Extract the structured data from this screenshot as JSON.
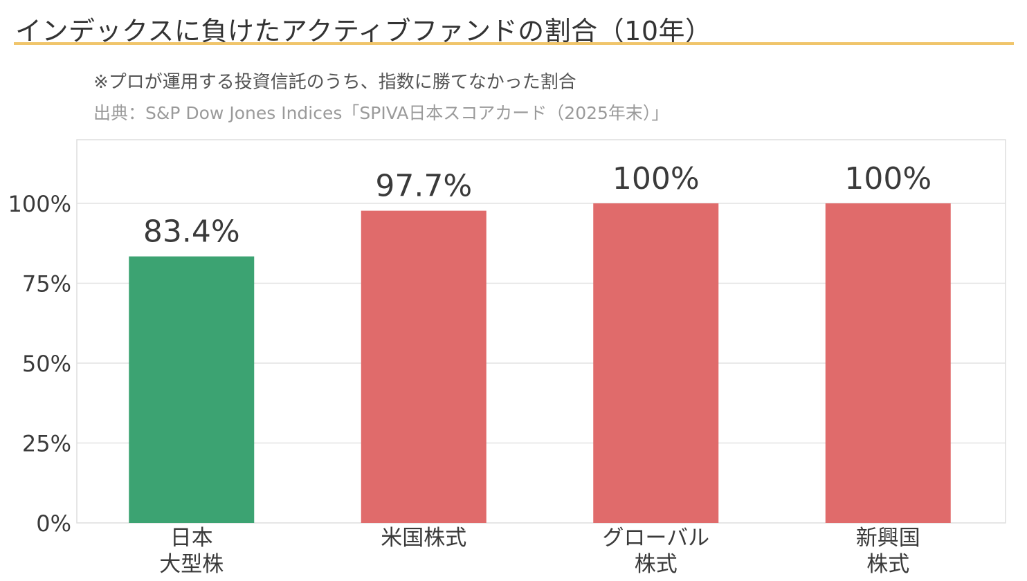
{
  "header": {
    "title": "インデックスに負けたアクティブファンドの割合（10年）",
    "subtitle": "※プロが運用する投資信託のうち、指数に勝てなかった割合",
    "source": "出典：S&P Dow Jones Indices「SPIVA日本スコアカード（2025年末）」"
  },
  "colors": {
    "accent_rule": "#f0c56b",
    "bar_green": "#3ca372",
    "bar_red": "#e06b6b",
    "grid": "#e2e2e2",
    "text": "#3a3a3a"
  },
  "chart_data": {
    "type": "bar",
    "categories": [
      [
        "日本",
        "大型株"
      ],
      [
        "米国株式"
      ],
      [
        "グローバル",
        "株式"
      ],
      [
        "新興国",
        "株式"
      ]
    ],
    "values": [
      83.4,
      97.7,
      100,
      100
    ],
    "value_labels": [
      "83.4%",
      "97.7%",
      "100%",
      "100%"
    ],
    "bar_colors": [
      "#3ca372",
      "#e06b6b",
      "#e06b6b",
      "#e06b6b"
    ],
    "yticks": [
      0,
      25,
      50,
      75,
      100
    ],
    "ytick_labels": [
      "0%",
      "25%",
      "50%",
      "75%",
      "100%"
    ],
    "ylim": [
      0,
      120
    ],
    "grid": true,
    "legend": "none"
  }
}
